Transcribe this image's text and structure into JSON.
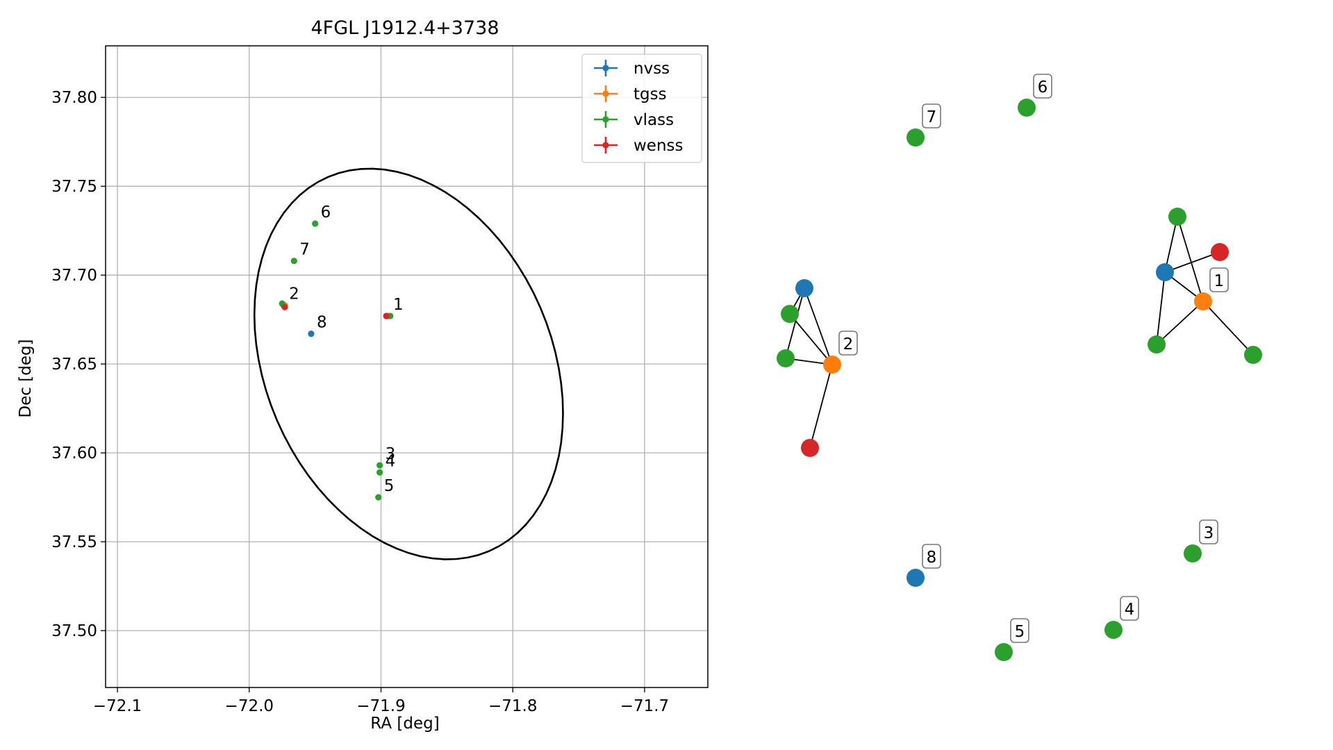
{
  "chart_data": [
    {
      "type": "scatter",
      "title": "4FGL J1912.4+3738",
      "xlabel": "RA [deg]",
      "ylabel": "Dec [deg]",
      "xlim": [
        -72.109,
        -71.652
      ],
      "ylim": [
        37.468,
        37.829
      ],
      "x_ticks": [
        -72.1,
        -72.0,
        -71.9,
        -71.8,
        -71.7
      ],
      "x_tick_labels": [
        "−72.1",
        "−72.0",
        "−71.9",
        "−71.8",
        "−71.7"
      ],
      "y_ticks": [
        37.5,
        37.55,
        37.6,
        37.65,
        37.7,
        37.75,
        37.8
      ],
      "y_tick_labels": [
        "37.50",
        "37.55",
        "37.60",
        "37.65",
        "37.70",
        "37.75",
        "37.80"
      ],
      "grid": true,
      "legend_position": "top-right",
      "series": [
        {
          "name": "nvss",
          "color": "#1f77b4",
          "points": [
            {
              "x": -71.895,
              "y": 37.677
            },
            {
              "x": -71.974,
              "y": 37.683
            },
            {
              "x": -71.953,
              "y": 37.667
            }
          ]
        },
        {
          "name": "tgss",
          "color": "#ff7f0e",
          "points": [
            {
              "x": -71.894,
              "y": 37.677
            },
            {
              "x": -71.973,
              "y": 37.683
            }
          ]
        },
        {
          "name": "vlass",
          "color": "#2ca02c",
          "points": [
            {
              "x": -71.893,
              "y": 37.677
            },
            {
              "x": -71.975,
              "y": 37.684
            },
            {
              "x": -71.901,
              "y": 37.593
            },
            {
              "x": -71.901,
              "y": 37.589
            },
            {
              "x": -71.902,
              "y": 37.575
            },
            {
              "x": -71.95,
              "y": 37.729
            },
            {
              "x": -71.966,
              "y": 37.708
            }
          ]
        },
        {
          "name": "wenss",
          "color": "#d62728",
          "points": [
            {
              "x": -71.896,
              "y": 37.677
            },
            {
              "x": -71.973,
              "y": 37.682
            }
          ]
        }
      ],
      "annotations": [
        {
          "text": "1",
          "x": -71.895,
          "y": 37.677
        },
        {
          "text": "2",
          "x": -71.974,
          "y": 37.683
        },
        {
          "text": "3",
          "x": -71.901,
          "y": 37.593
        },
        {
          "text": "4",
          "x": -71.901,
          "y": 37.589
        },
        {
          "text": "5",
          "x": -71.902,
          "y": 37.575
        },
        {
          "text": "6",
          "x": -71.95,
          "y": 37.729
        },
        {
          "text": "7",
          "x": -71.966,
          "y": 37.708
        },
        {
          "text": "8",
          "x": -71.953,
          "y": 37.667
        }
      ],
      "ellipse": {
        "center_ra": -71.879,
        "center_dec": 37.65,
        "semi_major_deg": 0.116,
        "semi_minor_deg": 0.085,
        "pa_deg": 28
      }
    },
    {
      "type": "network",
      "nodes": [
        {
          "id": "c1_nvss",
          "survey": "nvss",
          "color": "#1f77b4"
        },
        {
          "id": "c1_tgss",
          "survey": "tgss",
          "color": "#ff7f0e",
          "label": "1"
        },
        {
          "id": "c1_wenss",
          "survey": "wenss",
          "color": "#d62728"
        },
        {
          "id": "c1_vlass_a",
          "survey": "vlass",
          "color": "#2ca02c"
        },
        {
          "id": "c1_vlass_b",
          "survey": "vlass",
          "color": "#2ca02c"
        },
        {
          "id": "c1_vlass_c",
          "survey": "vlass",
          "color": "#2ca02c"
        },
        {
          "id": "c2_nvss",
          "survey": "nvss",
          "color": "#1f77b4"
        },
        {
          "id": "c2_tgss",
          "survey": "tgss",
          "color": "#ff7f0e",
          "label": "2"
        },
        {
          "id": "c2_wenss",
          "survey": "wenss",
          "color": "#d62728"
        },
        {
          "id": "c2_vlass_a",
          "survey": "vlass",
          "color": "#2ca02c"
        },
        {
          "id": "c2_vlass_b",
          "survey": "vlass",
          "color": "#2ca02c"
        },
        {
          "id": "n3",
          "survey": "vlass",
          "color": "#2ca02c",
          "label": "3"
        },
        {
          "id": "n4",
          "survey": "vlass",
          "color": "#2ca02c",
          "label": "4"
        },
        {
          "id": "n5",
          "survey": "vlass",
          "color": "#2ca02c",
          "label": "5"
        },
        {
          "id": "n6",
          "survey": "vlass",
          "color": "#2ca02c",
          "label": "6"
        },
        {
          "id": "n7",
          "survey": "vlass",
          "color": "#2ca02c",
          "label": "7"
        },
        {
          "id": "n8",
          "survey": "nvss",
          "color": "#1f77b4",
          "label": "8"
        }
      ],
      "edges": [
        [
          "c1_nvss",
          "c1_tgss"
        ],
        [
          "c1_nvss",
          "c1_wenss"
        ],
        [
          "c1_nvss",
          "c1_vlass_a"
        ],
        [
          "c1_nvss",
          "c1_vlass_b"
        ],
        [
          "c1_tgss",
          "c1_vlass_a"
        ],
        [
          "c1_tgss",
          "c1_vlass_b"
        ],
        [
          "c1_tgss",
          "c1_vlass_c"
        ],
        [
          "c2_nvss",
          "c2_tgss"
        ],
        [
          "c2_nvss",
          "c2_vlass_a"
        ],
        [
          "c2_nvss",
          "c2_vlass_b"
        ],
        [
          "c2_tgss",
          "c2_vlass_a"
        ],
        [
          "c2_tgss",
          "c2_vlass_b"
        ],
        [
          "c2_tgss",
          "c2_wenss"
        ]
      ]
    }
  ]
}
